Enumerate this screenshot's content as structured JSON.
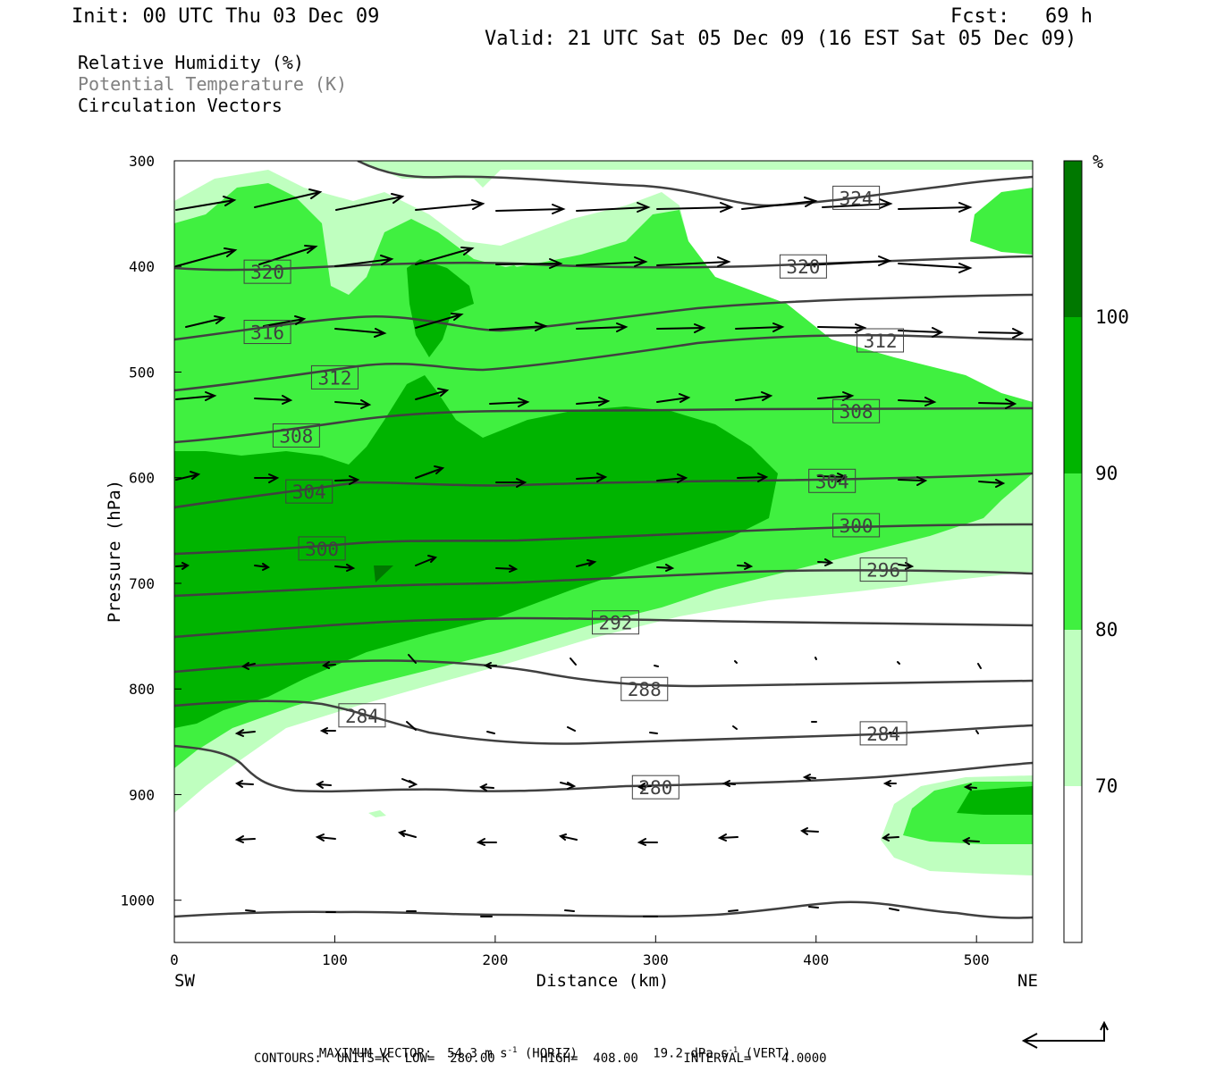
{
  "header": {
    "init": "Init: 00 UTC Thu 03 Dec 09",
    "fcst": "Fcst:   69 h",
    "valid": "Valid: 21 UTC Sat 05 Dec 09 (16 EST Sat 05 Dec 09)"
  },
  "legend_lines": {
    "rh": "Relative Humidity (%)",
    "theta": "Potential Temperature (K)",
    "vectors": "Circulation Vectors"
  },
  "footer": {
    "max_vector_label": "MAXIMUM VECTOR:",
    "max_horiz": "54.3 m s",
    "max_horiz_unit": "(HORIZ)",
    "max_vert": "19.2 dPa s",
    "max_vert_unit": "(VERT)",
    "exponent": "-1",
    "contours": "CONTOURS:  UNITS=K  LOW=  280.00      HIGH=  408.00      INTERVAL=    4.0000"
  },
  "colors": {
    "rh_70_80": "#bfffbf",
    "rh_80_90": "#40f040",
    "rh_90_100": "#00b400",
    "rh_100_plus": "#007800",
    "contour": "#404040",
    "frame": "#000000"
  },
  "chart_data": {
    "type": "cross-section",
    "xlabel": "Distance (km)",
    "ylabel": "Pressure (hPa)",
    "x_ticks": [
      "0",
      "100",
      "200",
      "300",
      "400",
      "500"
    ],
    "y_ticks": [
      "300",
      "400",
      "500",
      "600",
      "700",
      "800",
      "900",
      "1000"
    ],
    "xlim": [
      0,
      535
    ],
    "ylim": [
      1040,
      300
    ],
    "y_scale": "linear",
    "left_end_label": "SW",
    "right_end_label": "NE",
    "colorbar": {
      "unit": "%",
      "levels": [
        "70",
        "80",
        "90",
        "100"
      ]
    },
    "contour_labels": [
      {
        "value": "324",
        "x_km": 425,
        "p": 335
      },
      {
        "value": "320",
        "x_km": 58,
        "p": 405
      },
      {
        "value": "320",
        "x_km": 392,
        "p": 400
      },
      {
        "value": "316",
        "x_km": 58,
        "p": 462
      },
      {
        "value": "312",
        "x_km": 100,
        "p": 505
      },
      {
        "value": "312",
        "x_km": 440,
        "p": 470
      },
      {
        "value": "308",
        "x_km": 76,
        "p": 560
      },
      {
        "value": "308",
        "x_km": 425,
        "p": 537
      },
      {
        "value": "304",
        "x_km": 84,
        "p": 613
      },
      {
        "value": "304",
        "x_km": 410,
        "p": 603
      },
      {
        "value": "300",
        "x_km": 92,
        "p": 667
      },
      {
        "value": "300",
        "x_km": 425,
        "p": 645
      },
      {
        "value": "296",
        "x_km": 442,
        "p": 687
      },
      {
        "value": "292",
        "x_km": 275,
        "p": 737
      },
      {
        "value": "288",
        "x_km": 293,
        "p": 800
      },
      {
        "value": "284",
        "x_km": 117,
        "p": 825
      },
      {
        "value": "284",
        "x_km": 442,
        "p": 842
      },
      {
        "value": "280",
        "x_km": 300,
        "p": 893
      }
    ]
  }
}
